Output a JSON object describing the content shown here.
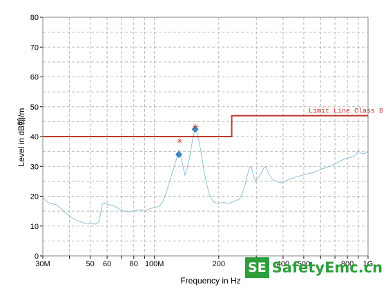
{
  "chart_data": {
    "type": "line",
    "xlabel": "Frequency in Hz",
    "ylabel": "Level in dB翰/m",
    "xscale": "log",
    "xlim": [
      30,
      1000
    ],
    "ylim": [
      0,
      80
    ],
    "grid": true,
    "x_tick_labels": [
      {
        "x": 30,
        "label": "30M"
      },
      {
        "x": 50,
        "label": "50"
      },
      {
        "x": 60,
        "label": "60"
      },
      {
        "x": 80,
        "label": "80"
      },
      {
        "x": 100,
        "label": "100M"
      },
      {
        "x": 200,
        "label": "200"
      },
      {
        "x": 400,
        "label": "400"
      },
      {
        "x": 500,
        "label": "500"
      },
      {
        "x": 800,
        "label": "800"
      },
      {
        "x": 1000,
        "label": "1G"
      }
    ],
    "y_ticks": [
      0,
      10,
      20,
      30,
      40,
      50,
      60,
      70,
      80
    ],
    "series": [
      {
        "kind": "measurement",
        "color": "#8fbfd8",
        "points": [
          [
            30,
            19.5
          ],
          [
            31,
            18.5
          ],
          [
            32,
            17.8
          ],
          [
            33,
            17.6
          ],
          [
            35,
            17.0
          ],
          [
            37,
            15.5
          ],
          [
            39,
            14.0
          ],
          [
            41,
            12.8
          ],
          [
            43,
            12.0
          ],
          [
            45,
            11.5
          ],
          [
            47,
            11.0
          ],
          [
            49,
            10.8
          ],
          [
            51,
            11.0
          ],
          [
            53,
            10.6
          ],
          [
            55,
            11.5
          ],
          [
            56,
            14.5
          ],
          [
            57,
            17.5
          ],
          [
            58,
            17.8
          ],
          [
            60,
            17.3
          ],
          [
            63,
            17.0
          ],
          [
            66,
            16.5
          ],
          [
            69,
            15.5
          ],
          [
            72,
            15.0
          ],
          [
            75,
            14.8
          ],
          [
            78,
            15.0
          ],
          [
            82,
            15.2
          ],
          [
            86,
            15.5
          ],
          [
            90,
            15.0
          ],
          [
            95,
            15.8
          ],
          [
            100,
            16.2
          ],
          [
            105,
            16.5
          ],
          [
            110,
            18.5
          ],
          [
            115,
            22.5
          ],
          [
            120,
            27.0
          ],
          [
            125,
            31.0
          ],
          [
            130,
            35.5
          ],
          [
            133,
            33.0
          ],
          [
            136,
            30.0
          ],
          [
            139,
            27.0
          ],
          [
            142,
            29.0
          ],
          [
            146,
            33.0
          ],
          [
            150,
            38.0
          ],
          [
            153,
            41.0
          ],
          [
            155,
            42.3
          ],
          [
            158,
            41.5
          ],
          [
            162,
            38.0
          ],
          [
            166,
            34.0
          ],
          [
            170,
            29.0
          ],
          [
            175,
            24.5
          ],
          [
            180,
            21.0
          ],
          [
            185,
            19.0
          ],
          [
            190,
            18.0
          ],
          [
            200,
            17.5
          ],
          [
            210,
            18.0
          ],
          [
            220,
            17.5
          ],
          [
            230,
            18.0
          ],
          [
            240,
            18.5
          ],
          [
            250,
            19.0
          ],
          [
            258,
            21.0
          ],
          [
            265,
            23.5
          ],
          [
            272,
            27.0
          ],
          [
            278,
            29.5
          ],
          [
            283,
            30.0
          ],
          [
            290,
            27.5
          ],
          [
            297,
            25.0
          ],
          [
            305,
            26.0
          ],
          [
            315,
            27.5
          ],
          [
            325,
            29.5
          ],
          [
            333,
            30.0
          ],
          [
            340,
            28.0
          ],
          [
            350,
            26.5
          ],
          [
            360,
            25.5
          ],
          [
            375,
            24.8
          ],
          [
            390,
            24.5
          ],
          [
            410,
            25.0
          ],
          [
            430,
            25.8
          ],
          [
            450,
            26.2
          ],
          [
            480,
            26.8
          ],
          [
            520,
            27.5
          ],
          [
            560,
            28.0
          ],
          [
            600,
            29.0
          ],
          [
            650,
            29.8
          ],
          [
            700,
            30.8
          ],
          [
            750,
            32.0
          ],
          [
            800,
            32.8
          ],
          [
            850,
            33.2
          ],
          [
            880,
            34.0
          ],
          [
            900,
            35.5
          ],
          [
            920,
            34.5
          ],
          [
            960,
            34.2
          ],
          [
            1000,
            35.0
          ]
        ]
      }
    ],
    "limit_line": {
      "name": "Limit Line Class B",
      "color": "#c0392b",
      "points": [
        [
          30,
          40
        ],
        [
          230,
          40
        ],
        [
          230,
          47
        ],
        [
          1000,
          47
        ]
      ]
    },
    "peaks": [
      {
        "x": 130,
        "y": 34.0,
        "marker": "diamond",
        "color": "#3a8cc9"
      },
      {
        "x": 155,
        "y": 42.5,
        "marker": "diamond",
        "color": "#3a8cc9"
      },
      {
        "x": 131,
        "y": 38.5,
        "marker": "star",
        "color": "#c0392b"
      },
      {
        "x": 156,
        "y": 43.2,
        "marker": "star",
        "color": "#c0392b"
      }
    ]
  },
  "watermark": {
    "logo": "SE",
    "text": "SafetyEmc.cn"
  }
}
